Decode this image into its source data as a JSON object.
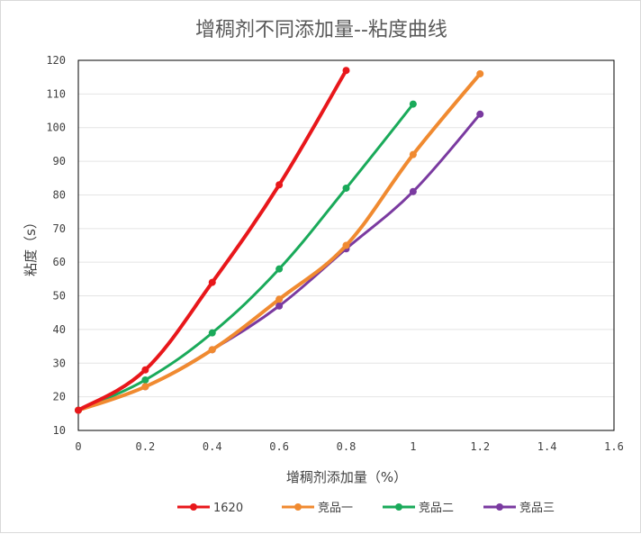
{
  "chart_data": {
    "type": "line",
    "title": "增稠剂不同添加量--粘度曲线",
    "xlabel": "增稠剂添加量（%）",
    "ylabel": "粘度（s）",
    "xlim": [
      0,
      1.6
    ],
    "ylim": [
      10,
      120
    ],
    "xticks": [
      "0",
      "0.2",
      "0.4",
      "0.6",
      "0.8",
      "1",
      "1.2",
      "1.4",
      "1.6"
    ],
    "yticks": [
      "10",
      "20",
      "30",
      "40",
      "50",
      "60",
      "70",
      "80",
      "90",
      "100",
      "110",
      "120"
    ],
    "grid": true,
    "legend": "bottom",
    "series": [
      {
        "name": "1620",
        "color": "#e8171b",
        "x": [
          0,
          0.2,
          0.4,
          0.6,
          0.8
        ],
        "y": [
          16,
          28,
          54,
          83,
          117
        ]
      },
      {
        "name": "竞品一",
        "color": "#f08a30",
        "x": [
          0,
          0.2,
          0.4,
          0.6,
          0.8,
          1,
          1.2
        ],
        "y": [
          16,
          23,
          34,
          49,
          65,
          92,
          116
        ]
      },
      {
        "name": "竞品二",
        "color": "#1aaa5a",
        "x": [
          0,
          0.2,
          0.4,
          0.6,
          0.8,
          1
        ],
        "y": [
          16,
          25,
          39,
          58,
          82,
          107
        ]
      },
      {
        "name": "竞品三",
        "color": "#7a3aa0",
        "x": [
          0,
          0.2,
          0.4,
          0.6,
          0.8,
          1,
          1.2
        ],
        "y": [
          16,
          23,
          34,
          47,
          64,
          81,
          104
        ]
      }
    ]
  }
}
